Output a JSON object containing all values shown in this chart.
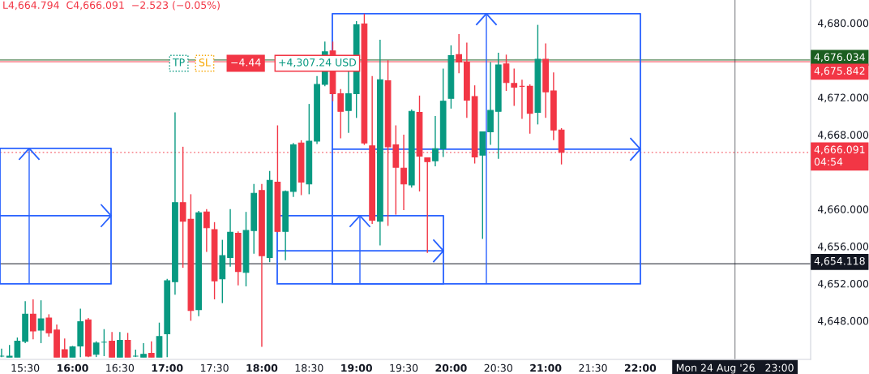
{
  "chart_data": {
    "type": "candlestick",
    "x": [
      "2026-08-24T15:15",
      "2026-08-24T15:20",
      "2026-08-24T15:25",
      "2026-08-24T15:30",
      "2026-08-24T15:35",
      "2026-08-24T15:40",
      "2026-08-24T15:45",
      "2026-08-24T15:50",
      "2026-08-24T15:55",
      "2026-08-24T16:00",
      "2026-08-24T16:05",
      "2026-08-24T16:10",
      "2026-08-24T16:15",
      "2026-08-24T16:20",
      "2026-08-24T16:25",
      "2026-08-24T16:30",
      "2026-08-24T16:35",
      "2026-08-24T16:40",
      "2026-08-24T16:45",
      "2026-08-24T16:50",
      "2026-08-24T16:55",
      "2026-08-24T17:00",
      "2026-08-24T17:05",
      "2026-08-24T17:10",
      "2026-08-24T17:15",
      "2026-08-24T17:20",
      "2026-08-24T17:25",
      "2026-08-24T17:30",
      "2026-08-24T17:35",
      "2026-08-24T17:40",
      "2026-08-24T17:45",
      "2026-08-24T17:50",
      "2026-08-24T17:55",
      "2026-08-24T18:00",
      "2026-08-24T18:05",
      "2026-08-24T18:10",
      "2026-08-24T18:15",
      "2026-08-24T18:20",
      "2026-08-24T18:25",
      "2026-08-24T18:30",
      "2026-08-24T18:35",
      "2026-08-24T18:40",
      "2026-08-24T18:45",
      "2026-08-24T18:50",
      "2026-08-24T18:55",
      "2026-08-24T19:00",
      "2026-08-24T19:05",
      "2026-08-24T19:10",
      "2026-08-24T19:15",
      "2026-08-24T19:20",
      "2026-08-24T19:25",
      "2026-08-24T19:30",
      "2026-08-24T19:35",
      "2026-08-24T19:40",
      "2026-08-24T19:45",
      "2026-08-24T19:50",
      "2026-08-24T19:55",
      "2026-08-24T20:00",
      "2026-08-24T20:05",
      "2026-08-24T20:10",
      "2026-08-24T20:15",
      "2026-08-24T20:20",
      "2026-08-24T20:25",
      "2026-08-24T20:30",
      "2026-08-24T20:35",
      "2026-08-24T20:40",
      "2026-08-24T20:45",
      "2026-08-24T20:50",
      "2026-08-24T20:55",
      "2026-08-24T21:00",
      "2026-08-24T21:05",
      "2026-08-24T21:10"
    ],
    "ohlc": [
      [
        4644.2,
        4645.0,
        4644.1,
        4644.2
      ],
      [
        4644.1,
        4645.4,
        4644.1,
        4644.2
      ],
      [
        4644.1,
        4646.2,
        4644.1,
        4645.8
      ],
      [
        4645.8,
        4650.1,
        4645.6,
        4648.7
      ],
      [
        4648.7,
        4650.3,
        4646.0,
        4646.9
      ],
      [
        4647.0,
        4650.2,
        4645.6,
        4648.2
      ],
      [
        4648.3,
        4648.7,
        4646.3,
        4646.7
      ],
      [
        4647.0,
        4647.6,
        4644.1,
        4644.1
      ],
      [
        4644.9,
        4646.1,
        4644.1,
        4644.1
      ],
      [
        4644.1,
        4645.3,
        4644.1,
        4645.2
      ],
      [
        4645.3,
        4649.3,
        4644.1,
        4647.9
      ],
      [
        4648.1,
        4648.3,
        4644.1,
        4644.2
      ],
      [
        4644.4,
        4645.8,
        4644.1,
        4645.6
      ],
      [
        4645.7,
        4647.1,
        4644.2,
        4645.7
      ],
      [
        4645.8,
        4646.8,
        4644.1,
        4644.1
      ],
      [
        4644.1,
        4646.8,
        4644.1,
        4645.9
      ],
      [
        4645.9,
        4646.7,
        4644.1,
        4644.1
      ],
      [
        4644.2,
        4644.9,
        4644.1,
        4644.2
      ],
      [
        4644.1,
        4645.6,
        4644.1,
        4644.4
      ],
      [
        4644.5,
        4645.8,
        4644.1,
        4644.1
      ],
      [
        4644.1,
        4647.8,
        4644.1,
        4646.3
      ],
      [
        4646.6,
        4652.5,
        4644.1,
        4652.3
      ],
      [
        4652.2,
        4670.4,
        4650.8,
        4660.7
      ],
      [
        4660.7,
        4666.7,
        4653.7,
        4658.7
      ],
      [
        4658.9,
        4661.6,
        4648.0,
        4649.1
      ],
      [
        4649.2,
        4659.8,
        4648.5,
        4659.6
      ],
      [
        4659.7,
        4660.0,
        4655.4,
        4658.0
      ],
      [
        4657.8,
        4658.6,
        4650.3,
        4652.3
      ],
      [
        4652.5,
        4656.7,
        4649.9,
        4655.0
      ],
      [
        4654.8,
        4660.0,
        4653.8,
        4657.5
      ],
      [
        4657.4,
        4657.6,
        4651.8,
        4653.3
      ],
      [
        4653.2,
        4659.7,
        4651.7,
        4657.7
      ],
      [
        4657.7,
        4662.7,
        4655.2,
        4661.7
      ],
      [
        4662.0,
        4662.7,
        4645.2,
        4655.0
      ],
      [
        4654.8,
        4664.1,
        4654.3,
        4663.1
      ],
      [
        4662.9,
        4669.0,
        4657.5,
        4657.6
      ],
      [
        4657.6,
        4662.0,
        4654.5,
        4661.9
      ],
      [
        4661.9,
        4667.1,
        4661.3,
        4666.9
      ],
      [
        4667.1,
        4667.4,
        4661.5,
        4662.9
      ],
      [
        4662.7,
        4671.3,
        4661.6,
        4667.3
      ],
      [
        4667.3,
        4674.3,
        4667.0,
        4673.4
      ],
      [
        4673.4,
        4678.0,
        4673.2,
        4676.9
      ],
      [
        4677.0,
        4678.0,
        4671.6,
        4672.4
      ],
      [
        4672.4,
        4672.9,
        4667.6,
        4670.5
      ],
      [
        4670.6,
        4674.8,
        4668.2,
        4672.4
      ],
      [
        4672.4,
        4680.2,
        4669.8,
        4679.8
      ],
      [
        4679.9,
        4681.0,
        4666.9,
        4667.1
      ],
      [
        4666.8,
        4674.3,
        4658.4,
        4658.8
      ],
      [
        4658.7,
        4678.2,
        4656.1,
        4673.9
      ],
      [
        4673.8,
        4676.0,
        4658.2,
        4666.7
      ],
      [
        4666.9,
        4669.0,
        4659.4,
        4664.5
      ],
      [
        4664.4,
        4668.0,
        4659.9,
        4662.7
      ],
      [
        4662.6,
        4670.7,
        4662.3,
        4670.5
      ],
      [
        4670.4,
        4672.2,
        4661.9,
        4665.7
      ],
      [
        4665.5,
        4665.5,
        4655.3,
        4665.1
      ],
      [
        4665.2,
        4670.0,
        4664.6,
        4666.5
      ],
      [
        4666.5,
        4675.1,
        4665.6,
        4671.6
      ],
      [
        4671.9,
        4677.6,
        4670.8,
        4676.5
      ],
      [
        4676.6,
        4678.8,
        4674.6,
        4675.8
      ],
      [
        4675.8,
        4677.9,
        4669.8,
        4671.7
      ],
      [
        4672.1,
        4673.3,
        4664.9,
        4665.6
      ],
      [
        4665.8,
        4668.3,
        4656.8,
        4668.3
      ],
      [
        4668.3,
        4675.8,
        4666.9,
        4670.6
      ],
      [
        4670.5,
        4676.8,
        4665.4,
        4675.5
      ],
      [
        4675.6,
        4676.6,
        4672.7,
        4673.6
      ],
      [
        4673.5,
        4675.1,
        4671.1,
        4673.1
      ],
      [
        4673.2,
        4673.9,
        4669.7,
        4673.2
      ],
      [
        4673.2,
        4673.4,
        4668.1,
        4670.3
      ],
      [
        4670.4,
        4679.8,
        4669.1,
        4676.1
      ],
      [
        4676.1,
        4677.8,
        4669.8,
        4672.6
      ],
      [
        4672.7,
        4674.7,
        4667.4,
        4668.5
      ],
      [
        4668.5,
        4668.7,
        4664.8,
        4666.1
      ]
    ],
    "colors": [
      "#089981",
      "#089981",
      "#089981",
      "#089981",
      "#f23645",
      "#089981",
      "#f23645",
      "#f23645",
      "#f23645",
      "#089981",
      "#089981",
      "#f23645",
      "#089981",
      "#089981",
      "#f23645",
      "#089981",
      "#f23645",
      "#089981",
      "#089981",
      "#f23645",
      "#089981",
      "#089981",
      "#089981",
      "#f23645",
      "#f23645",
      "#089981",
      "#f23645",
      "#f23645",
      "#089981",
      "#089981",
      "#f23645",
      "#089981",
      "#089981",
      "#f23645",
      "#089981",
      "#f23645",
      "#089981",
      "#089981",
      "#f23645",
      "#089981",
      "#089981",
      "#089981",
      "#f23645",
      "#f23645",
      "#089981",
      "#089981",
      "#f23645",
      "#f23645",
      "#089981",
      "#f23645",
      "#f23645",
      "#f23645",
      "#089981",
      "#f23645",
      "#f23645",
      "#089981",
      "#089981",
      "#089981",
      "#f23645",
      "#f23645",
      "#f23645",
      "#089981",
      "#089981",
      "#089981",
      "#f23645",
      "#f23645",
      "#f23645",
      "#f23645",
      "#089981",
      "#f23645",
      "#f23645",
      "#f23645"
    ],
    "xlim": [
      "2026-08-24T15:14",
      "2026-08-24T23:48"
    ],
    "xticks": [
      {
        "value": "2026-08-24T15:30",
        "label": "15:30"
      },
      {
        "value": "2026-08-24T16:00",
        "label": "16:00"
      },
      {
        "value": "2026-08-24T16:30",
        "label": "16:30"
      },
      {
        "value": "2026-08-24T17:00",
        "label": "17:00"
      },
      {
        "value": "2026-08-24T17:30",
        "label": "17:30"
      },
      {
        "value": "2026-08-24T18:00",
        "label": "18:00"
      },
      {
        "value": "2026-08-24T18:30",
        "label": "18:30"
      },
      {
        "value": "2026-08-24T19:00",
        "label": "19:00"
      },
      {
        "value": "2026-08-24T19:30",
        "label": "19:30"
      },
      {
        "value": "2026-08-24T20:00",
        "label": "20:00"
      },
      {
        "value": "2026-08-24T20:30",
        "label": "20:30"
      },
      {
        "value": "2026-08-24T21:00",
        "label": "21:00"
      },
      {
        "value": "2026-08-24T21:30",
        "label": "21:30"
      },
      {
        "value": "2026-08-24T22:00",
        "label": "22:00"
      }
    ],
    "ylim": [
      4643.85,
      4682.47
    ],
    "yticks": [
      {
        "value": 4648,
        "label": "4,648.000"
      },
      {
        "value": 4652,
        "label": "4,652.000"
      },
      {
        "value": 4656,
        "label": "4,656.000"
      },
      {
        "value": 4660,
        "label": "4,660.000"
      },
      {
        "value": 4668,
        "label": "4,668.000"
      },
      {
        "value": 4672,
        "label": "4,672.000"
      },
      {
        "value": 4680,
        "label": "4,680.000"
      }
    ],
    "ref_lines": [
      {
        "axis": "y",
        "value": 4676.034,
        "label": "4,676.034",
        "color": "#1b5e20",
        "line_style": "solid"
      },
      {
        "axis": "y",
        "value": 4675.842,
        "label": "4,675.842",
        "color": "#f23645",
        "line_style": "solid"
      },
      {
        "axis": "y",
        "value": 4666.091,
        "label": "4,666.091\n04:54",
        "color": "#f23645",
        "line_style": "dotted"
      },
      {
        "axis": "y",
        "value": 4654.118,
        "label": "4,654.118",
        "color": "#131722",
        "line_style": "solid"
      },
      {
        "axis": "x",
        "value": "2026-08-24T23:00",
        "label": "Mon 24 Aug '26   23:00",
        "color": "#131722",
        "line_style": "solid"
      }
    ],
    "annotations": [
      "L4,664.794  C4,666.091  −2.523 (−0.05%)",
      "TP",
      "SL",
      "−4.44",
      "+4,307.24 USD"
    ]
  }
}
